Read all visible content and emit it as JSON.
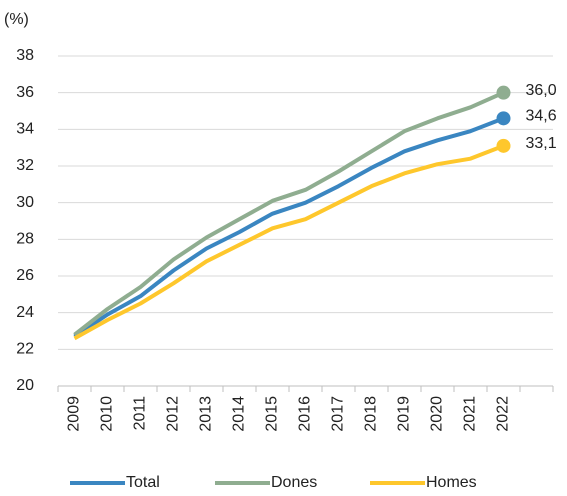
{
  "chart_data": {
    "type": "line",
    "ylabel": "(%)",
    "categories": [
      "2009",
      "2010",
      "2011",
      "2012",
      "2013",
      "2014",
      "2015",
      "2016",
      "2017",
      "2018",
      "2019",
      "2020",
      "2021",
      "2022"
    ],
    "series": [
      {
        "name": "Total",
        "color": "#3a86c1",
        "values": [
          22.7,
          23.9,
          24.9,
          26.3,
          27.5,
          28.4,
          29.4,
          30.0,
          30.9,
          31.9,
          32.8,
          33.4,
          33.9,
          34.6
        ],
        "value_labels": [
          null,
          null,
          null,
          null,
          null,
          null,
          null,
          null,
          null,
          null,
          null,
          null,
          null,
          "34,6"
        ]
      },
      {
        "name": "Dones",
        "color": "#8fad90",
        "values": [
          22.8,
          24.2,
          25.4,
          26.9,
          28.1,
          29.1,
          30.1,
          30.7,
          31.7,
          32.8,
          33.9,
          34.6,
          35.2,
          36.0
        ],
        "value_labels": [
          null,
          null,
          null,
          null,
          null,
          null,
          null,
          null,
          null,
          null,
          null,
          null,
          null,
          "36,0"
        ]
      },
      {
        "name": "Homes",
        "color": "#fec72c",
        "values": [
          22.6,
          23.6,
          24.5,
          25.6,
          26.8,
          27.7,
          28.6,
          29.1,
          30.0,
          30.9,
          31.6,
          32.1,
          32.4,
          33.1
        ],
        "value_labels": [
          null,
          null,
          null,
          null,
          null,
          null,
          null,
          null,
          null,
          null,
          null,
          null,
          null,
          "33,1"
        ]
      }
    ],
    "ylim": [
      20,
      38
    ],
    "yticks": [
      20,
      22,
      24,
      26,
      28,
      30,
      32,
      34,
      36,
      38
    ],
    "grid": true,
    "legend": "bottom"
  }
}
